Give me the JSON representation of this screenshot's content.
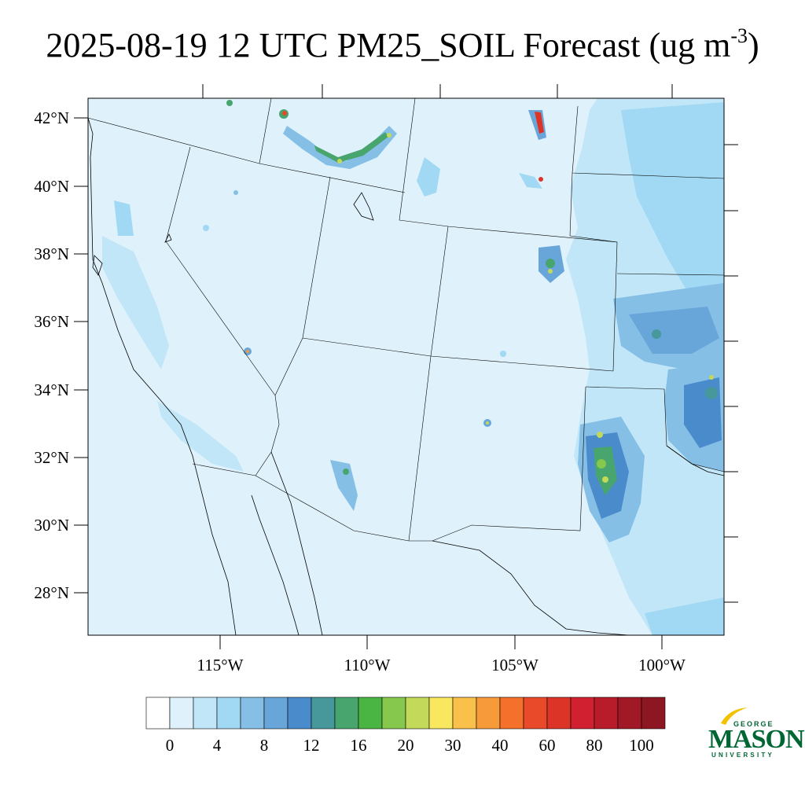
{
  "title": {
    "main": "2025-08-19 12 UTC PM25_SOIL Forecast (ug m",
    "sup": "-3",
    "end": ")"
  },
  "map": {
    "lat_labels": [
      "42°N",
      "40°N",
      "38°N",
      "36°N",
      "34°N",
      "32°N",
      "30°N",
      "28°N"
    ],
    "lon_labels": [
      "115°W",
      "110°W",
      "105°W",
      "100°W"
    ],
    "background_color": "#dff2fb"
  },
  "colorbar": {
    "colors": [
      "#ffffff",
      "#dff2fb",
      "#c1e6f7",
      "#a1d8f3",
      "#85bfe6",
      "#68a6da",
      "#4a8ccb",
      "#47989b",
      "#48a56e",
      "#4ab543",
      "#86c74e",
      "#c3d95a",
      "#f9e85f",
      "#f9c04b",
      "#f79a3a",
      "#f4702b",
      "#e94b2a",
      "#dc3528",
      "#d12130",
      "#b81c2b",
      "#a11927",
      "#8c1622"
    ],
    "labels": [
      "0",
      "4",
      "8",
      "12",
      "16",
      "20",
      "30",
      "40",
      "60",
      "80",
      "100"
    ]
  },
  "logo": {
    "line1": "GEORGE",
    "line2": "MASON",
    "line3": "UNIVERSITY",
    "color": "#006633",
    "accent": "#f2c200"
  }
}
